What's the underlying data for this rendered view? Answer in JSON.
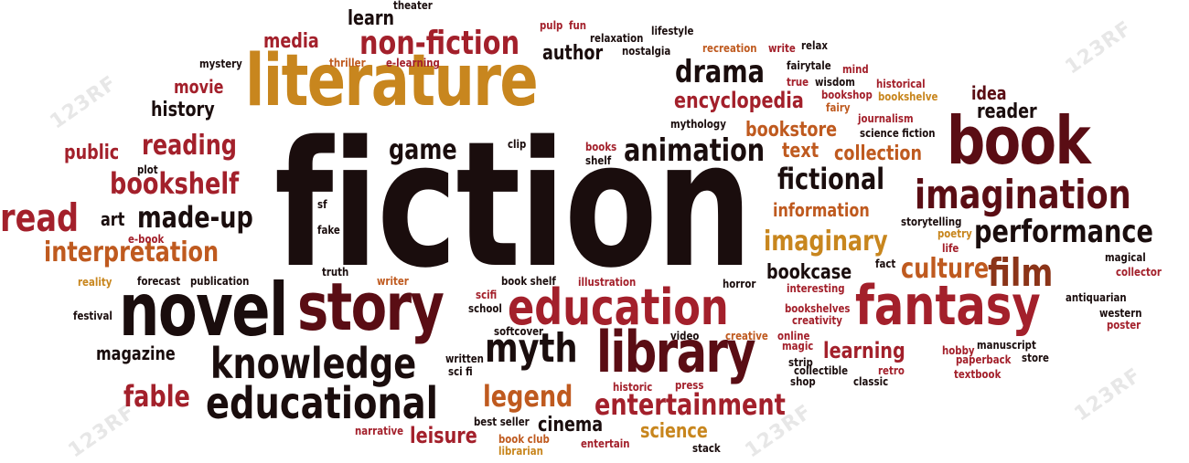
{
  "palette": {
    "black": "#1a0d0d",
    "maroon": "#5a0d14",
    "red": "#8a1820",
    "crimson": "#a3202b",
    "brown": "#8b3418",
    "orange": "#bf5a1f",
    "gold": "#c8861e",
    "amber": "#d59a26"
  },
  "watermark": "123RF",
  "words": [
    {
      "text": "fiction",
      "color": "black"
    },
    {
      "text": "literature",
      "color": "gold"
    },
    {
      "text": "book",
      "color": "maroon"
    },
    {
      "text": "novel",
      "color": "black"
    },
    {
      "text": "story",
      "color": "maroon"
    },
    {
      "text": "education",
      "color": "crimson"
    },
    {
      "text": "library",
      "color": "maroon"
    },
    {
      "text": "fantasy",
      "color": "crimson"
    },
    {
      "text": "knowledge",
      "color": "black"
    },
    {
      "text": "educational",
      "color": "black"
    },
    {
      "text": "myth",
      "color": "black"
    },
    {
      "text": "imagination",
      "color": "maroon"
    },
    {
      "text": "non-fiction",
      "color": "crimson"
    },
    {
      "text": "drama",
      "color": "black"
    },
    {
      "text": "animation",
      "color": "black"
    },
    {
      "text": "fictional",
      "color": "black"
    },
    {
      "text": "performance",
      "color": "black"
    },
    {
      "text": "film",
      "color": "brown"
    },
    {
      "text": "culture",
      "color": "orange"
    },
    {
      "text": "imaginary",
      "color": "gold"
    },
    {
      "text": "entertainment",
      "color": "crimson"
    },
    {
      "text": "legend",
      "color": "orange"
    },
    {
      "text": "fable",
      "color": "crimson"
    },
    {
      "text": "read",
      "color": "crimson"
    },
    {
      "text": "bookshelf",
      "color": "crimson"
    },
    {
      "text": "interpretation",
      "color": "orange"
    },
    {
      "text": "made-up",
      "color": "black"
    },
    {
      "text": "reading",
      "color": "crimson"
    },
    {
      "text": "game",
      "color": "black"
    },
    {
      "text": "encyclopedia",
      "color": "crimson"
    },
    {
      "text": "bookstore",
      "color": "orange"
    },
    {
      "text": "collection",
      "color": "orange"
    },
    {
      "text": "learning",
      "color": "crimson"
    },
    {
      "text": "science",
      "color": "gold"
    },
    {
      "text": "cinema",
      "color": "black"
    },
    {
      "text": "leisure",
      "color": "crimson"
    },
    {
      "text": "magazine",
      "color": "black"
    },
    {
      "text": "bookcase",
      "color": "black"
    },
    {
      "text": "information",
      "color": "orange"
    },
    {
      "text": "media",
      "color": "crimson"
    },
    {
      "text": "author",
      "color": "black"
    },
    {
      "text": "learn",
      "color": "black"
    },
    {
      "text": "movie",
      "color": "crimson"
    },
    {
      "text": "history",
      "color": "black"
    },
    {
      "text": "public",
      "color": "crimson"
    },
    {
      "text": "art",
      "color": "black"
    },
    {
      "text": "reader",
      "color": "black"
    },
    {
      "text": "idea",
      "color": "maroon"
    },
    {
      "text": "text",
      "color": "orange"
    },
    {
      "text": "theater",
      "color": "black"
    },
    {
      "text": "pulp",
      "color": "crimson"
    },
    {
      "text": "fun",
      "color": "crimson"
    },
    {
      "text": "relaxation",
      "color": "black"
    },
    {
      "text": "lifestyle",
      "color": "black"
    },
    {
      "text": "nostalgia",
      "color": "black"
    },
    {
      "text": "recreation",
      "color": "orange"
    },
    {
      "text": "write",
      "color": "crimson"
    },
    {
      "text": "relax",
      "color": "black"
    },
    {
      "text": "mystery",
      "color": "black"
    },
    {
      "text": "thriller",
      "color": "orange"
    },
    {
      "text": "e-learning",
      "color": "crimson"
    },
    {
      "text": "fairytale",
      "color": "black"
    },
    {
      "text": "mind",
      "color": "crimson"
    },
    {
      "text": "true",
      "color": "crimson"
    },
    {
      "text": "wisdom",
      "color": "black"
    },
    {
      "text": "historical",
      "color": "crimson"
    },
    {
      "text": "bookshop",
      "color": "crimson"
    },
    {
      "text": "fairy",
      "color": "orange"
    },
    {
      "text": "bookshelve",
      "color": "gold"
    },
    {
      "text": "mythology",
      "color": "black"
    },
    {
      "text": "journalism",
      "color": "crimson"
    },
    {
      "text": "science fiction",
      "color": "black"
    },
    {
      "text": "clip",
      "color": "black"
    },
    {
      "text": "books",
      "color": "crimson"
    },
    {
      "text": "shelf",
      "color": "black"
    },
    {
      "text": "plot",
      "color": "black"
    },
    {
      "text": "sf",
      "color": "black"
    },
    {
      "text": "fake",
      "color": "black"
    },
    {
      "text": "e-book",
      "color": "crimson"
    },
    {
      "text": "storytelling",
      "color": "black"
    },
    {
      "text": "poetry",
      "color": "gold"
    },
    {
      "text": "life",
      "color": "crimson"
    },
    {
      "text": "magical",
      "color": "black"
    },
    {
      "text": "fact",
      "color": "black"
    },
    {
      "text": "collector",
      "color": "crimson"
    },
    {
      "text": "reality",
      "color": "gold"
    },
    {
      "text": "forecast",
      "color": "black"
    },
    {
      "text": "publication",
      "color": "black"
    },
    {
      "text": "truth",
      "color": "black"
    },
    {
      "text": "writer",
      "color": "orange"
    },
    {
      "text": "book shelf",
      "color": "black"
    },
    {
      "text": "illustration",
      "color": "crimson"
    },
    {
      "text": "horror",
      "color": "black"
    },
    {
      "text": "interesting",
      "color": "crimson"
    },
    {
      "text": "antiquarian",
      "color": "black"
    },
    {
      "text": "festival",
      "color": "black"
    },
    {
      "text": "scifi",
      "color": "crimson"
    },
    {
      "text": "school",
      "color": "black"
    },
    {
      "text": "bookshelves",
      "color": "crimson"
    },
    {
      "text": "creativity",
      "color": "crimson"
    },
    {
      "text": "western",
      "color": "black"
    },
    {
      "text": "poster",
      "color": "crimson"
    },
    {
      "text": "softcover",
      "color": "black"
    },
    {
      "text": "video",
      "color": "black"
    },
    {
      "text": "creative",
      "color": "orange"
    },
    {
      "text": "online",
      "color": "crimson"
    },
    {
      "text": "magic",
      "color": "crimson"
    },
    {
      "text": "hobby",
      "color": "crimson"
    },
    {
      "text": "manuscript",
      "color": "black"
    },
    {
      "text": "written",
      "color": "black"
    },
    {
      "text": "strip",
      "color": "black"
    },
    {
      "text": "collectible",
      "color": "black"
    },
    {
      "text": "paperback",
      "color": "crimson"
    },
    {
      "text": "store",
      "color": "black"
    },
    {
      "text": "sci fi",
      "color": "black"
    },
    {
      "text": "retro",
      "color": "crimson"
    },
    {
      "text": "textbook",
      "color": "crimson"
    },
    {
      "text": "historic",
      "color": "crimson"
    },
    {
      "text": "press",
      "color": "crimson"
    },
    {
      "text": "shop",
      "color": "black"
    },
    {
      "text": "classic",
      "color": "black"
    },
    {
      "text": "narrative",
      "color": "crimson"
    },
    {
      "text": "best seller",
      "color": "black"
    },
    {
      "text": "book club",
      "color": "orange"
    },
    {
      "text": "entertain",
      "color": "crimson"
    },
    {
      "text": "librarian",
      "color": "gold"
    },
    {
      "text": "stack",
      "color": "black"
    }
  ]
}
